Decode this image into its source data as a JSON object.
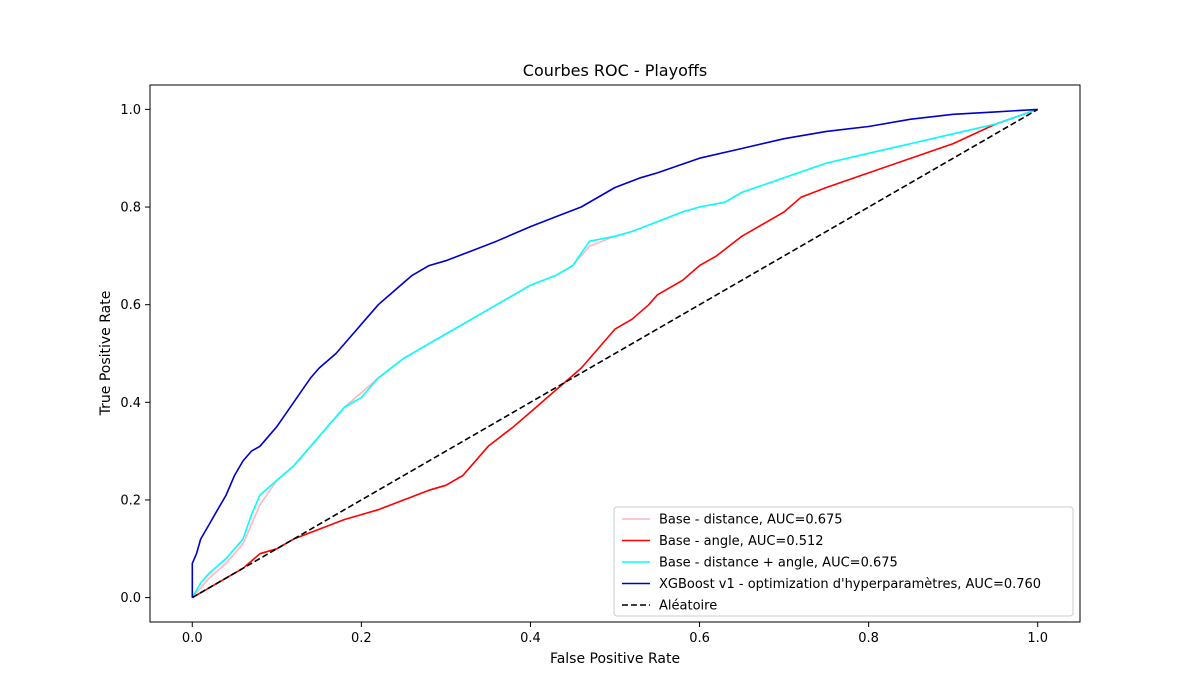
{
  "chart_data": {
    "type": "line",
    "title": "Courbes ROC - Playoffs",
    "xlabel": "False Positive Rate",
    "ylabel": "True Positive Rate",
    "xlim": [
      -0.05,
      1.05
    ],
    "ylim": [
      -0.05,
      1.05
    ],
    "xticks": [
      "0.0",
      "0.2",
      "0.4",
      "0.6",
      "0.8",
      "1.0"
    ],
    "yticks": [
      "0.0",
      "0.2",
      "0.4",
      "0.6",
      "0.8",
      "1.0"
    ],
    "grid": false,
    "legend_position": "lower-right",
    "series": [
      {
        "name": "Base - distance, AUC=0.675",
        "color": "#ffb6c1",
        "x": [
          0,
          0.01,
          0.02,
          0.04,
          0.06,
          0.07,
          0.08,
          0.1,
          0.12,
          0.14,
          0.16,
          0.18,
          0.2,
          0.22,
          0.25,
          0.28,
          0.3,
          0.33,
          0.36,
          0.4,
          0.43,
          0.45,
          0.47,
          0.5,
          0.52,
          0.55,
          0.58,
          0.6,
          0.63,
          0.65,
          0.7,
          0.75,
          0.8,
          0.85,
          0.9,
          0.95,
          1.0
        ],
        "y": [
          0,
          0.02,
          0.04,
          0.07,
          0.11,
          0.15,
          0.19,
          0.24,
          0.27,
          0.31,
          0.35,
          0.39,
          0.42,
          0.45,
          0.49,
          0.52,
          0.54,
          0.57,
          0.6,
          0.64,
          0.66,
          0.68,
          0.72,
          0.74,
          0.75,
          0.77,
          0.79,
          0.8,
          0.81,
          0.83,
          0.86,
          0.89,
          0.91,
          0.93,
          0.95,
          0.97,
          1.0
        ]
      },
      {
        "name": "Base - angle, AUC=0.512",
        "color": "#ff0000",
        "x": [
          0,
          0.02,
          0.04,
          0.06,
          0.08,
          0.1,
          0.12,
          0.15,
          0.18,
          0.2,
          0.22,
          0.25,
          0.28,
          0.3,
          0.32,
          0.33,
          0.35,
          0.38,
          0.4,
          0.42,
          0.44,
          0.46,
          0.48,
          0.5,
          0.52,
          0.54,
          0.55,
          0.58,
          0.6,
          0.62,
          0.65,
          0.7,
          0.72,
          0.75,
          0.8,
          0.85,
          0.9,
          0.95,
          1.0
        ],
        "y": [
          0,
          0.02,
          0.04,
          0.06,
          0.09,
          0.1,
          0.12,
          0.14,
          0.16,
          0.17,
          0.18,
          0.2,
          0.22,
          0.23,
          0.25,
          0.27,
          0.31,
          0.35,
          0.38,
          0.41,
          0.44,
          0.47,
          0.51,
          0.55,
          0.57,
          0.6,
          0.62,
          0.65,
          0.68,
          0.7,
          0.74,
          0.79,
          0.82,
          0.84,
          0.87,
          0.9,
          0.93,
          0.97,
          1.0
        ]
      },
      {
        "name": "Base - distance + angle, AUC=0.675",
        "color": "#00ffff",
        "x": [
          0,
          0.01,
          0.02,
          0.04,
          0.06,
          0.07,
          0.08,
          0.1,
          0.12,
          0.14,
          0.16,
          0.18,
          0.2,
          0.22,
          0.25,
          0.28,
          0.3,
          0.33,
          0.36,
          0.4,
          0.43,
          0.45,
          0.47,
          0.5,
          0.52,
          0.55,
          0.58,
          0.6,
          0.63,
          0.65,
          0.7,
          0.75,
          0.8,
          0.85,
          0.9,
          0.95,
          1.0
        ],
        "y": [
          0,
          0.03,
          0.05,
          0.08,
          0.12,
          0.17,
          0.21,
          0.24,
          0.27,
          0.31,
          0.35,
          0.39,
          0.41,
          0.45,
          0.49,
          0.52,
          0.54,
          0.57,
          0.6,
          0.64,
          0.66,
          0.68,
          0.73,
          0.74,
          0.75,
          0.77,
          0.79,
          0.8,
          0.81,
          0.83,
          0.86,
          0.89,
          0.91,
          0.93,
          0.95,
          0.97,
          1.0
        ]
      },
      {
        "name": "XGBoost v1 - optimization d'hyperparamètres, AUC=0.760",
        "color": "#0000cd",
        "x": [
          0,
          0,
          0.005,
          0.01,
          0.02,
          0.03,
          0.04,
          0.05,
          0.06,
          0.07,
          0.08,
          0.1,
          0.12,
          0.14,
          0.15,
          0.17,
          0.19,
          0.2,
          0.22,
          0.24,
          0.26,
          0.28,
          0.3,
          0.33,
          0.36,
          0.4,
          0.43,
          0.46,
          0.5,
          0.53,
          0.55,
          0.6,
          0.65,
          0.7,
          0.75,
          0.8,
          0.85,
          0.9,
          0.95,
          1.0
        ],
        "y": [
          0,
          0.07,
          0.09,
          0.12,
          0.15,
          0.18,
          0.21,
          0.25,
          0.28,
          0.3,
          0.31,
          0.35,
          0.4,
          0.45,
          0.47,
          0.5,
          0.54,
          0.56,
          0.6,
          0.63,
          0.66,
          0.68,
          0.69,
          0.71,
          0.73,
          0.76,
          0.78,
          0.8,
          0.84,
          0.86,
          0.87,
          0.9,
          0.92,
          0.94,
          0.955,
          0.965,
          0.98,
          0.99,
          0.995,
          1.0
        ]
      },
      {
        "name": "Aléatoire",
        "color": "#000000",
        "dashed": true,
        "x": [
          0,
          1
        ],
        "y": [
          0,
          1
        ]
      }
    ]
  }
}
